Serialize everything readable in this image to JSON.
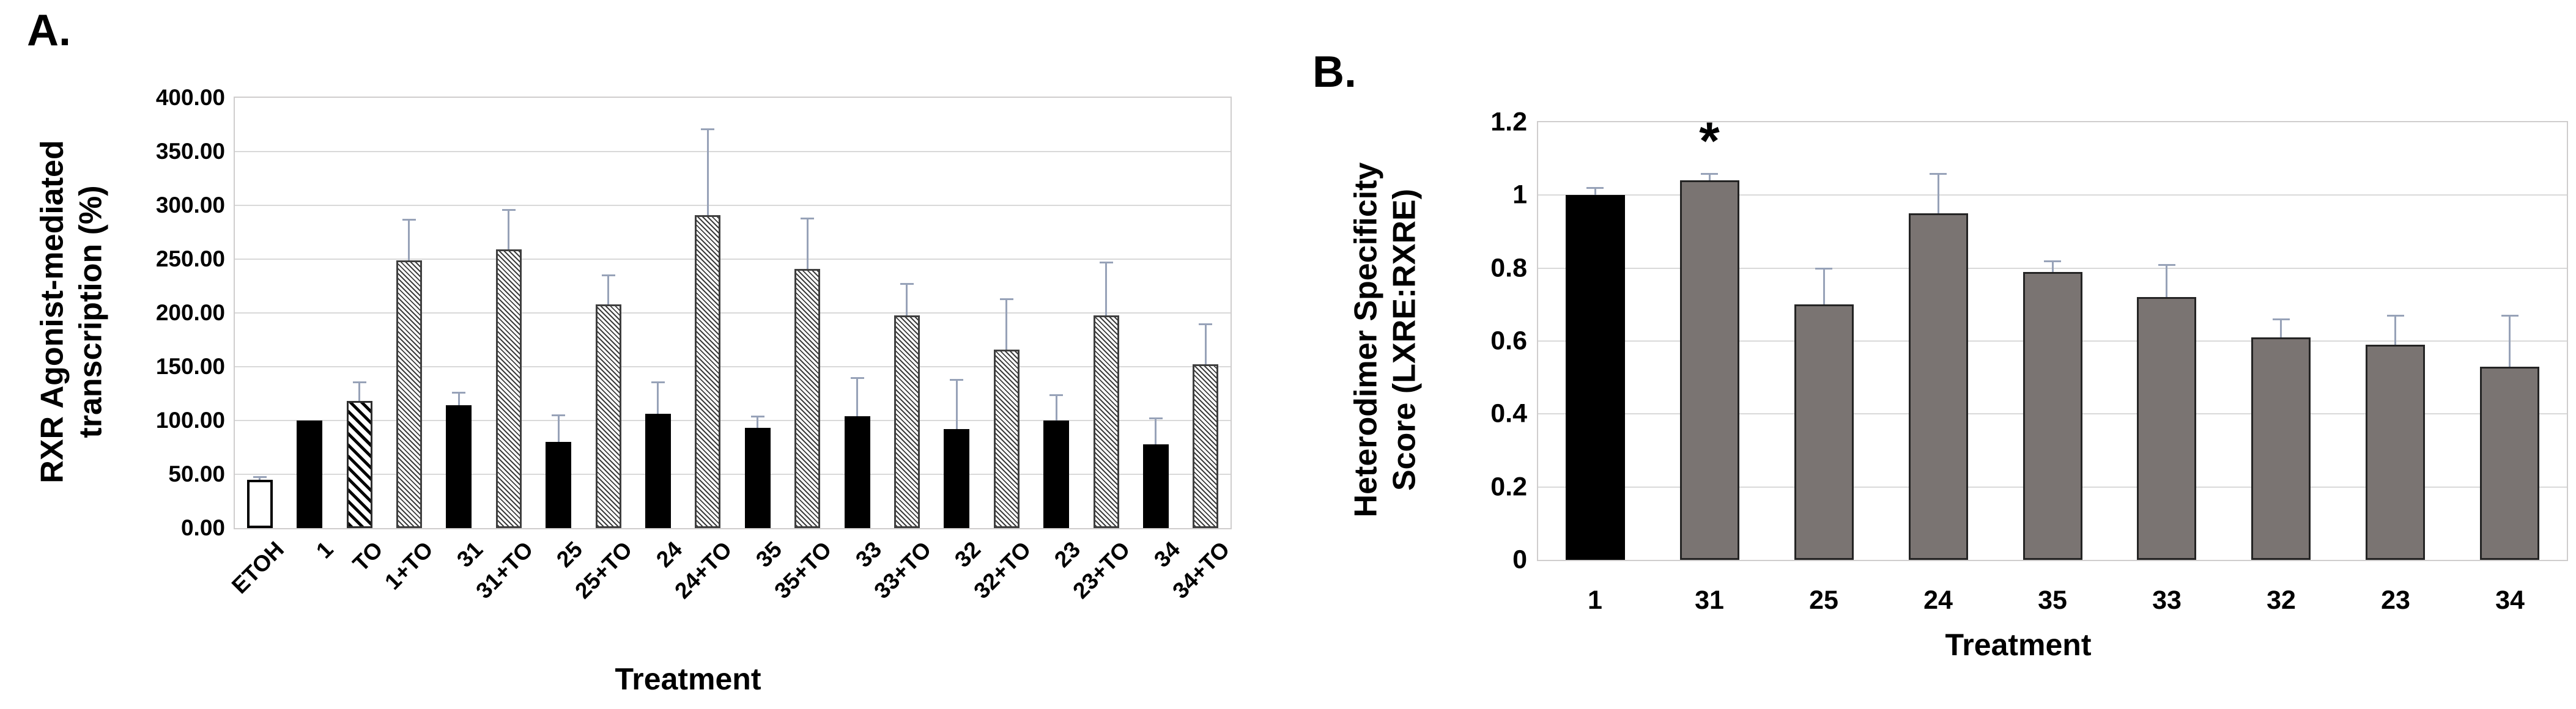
{
  "figure": {
    "background": "#ffffff"
  },
  "colors": {
    "error_bar": "#97a2b8",
    "gridline": "#d9d9d9",
    "plot_border": "#cfcdcd",
    "black_bar": "#000000",
    "gray_bar": "#7a7472",
    "text": "#000000"
  },
  "panels": {
    "a": {
      "tag": "A.",
      "ylabel_lines": [
        "RXR Agonist-mediated",
        "transcription (%)"
      ],
      "xlabel": "Treatment"
    },
    "b": {
      "tag": "B.",
      "ylabel_lines": [
        "Heterodimer Specificity",
        "Score (LXRE:RXRE)"
      ],
      "xlabel": "Treatment"
    }
  },
  "chart_data": [
    {
      "id": "a",
      "type": "bar",
      "title": "",
      "xlabel": "Treatment",
      "ylabel": "RXR Agonist-mediated transcription (%)",
      "ylim": [
        0,
        400
      ],
      "ytick_labels": [
        "400.00",
        "350.00",
        "300.00",
        "250.00",
        "200.00",
        "150.00",
        "100.00",
        "50.00",
        "0.00"
      ],
      "grid": "horizontal",
      "legend": "none",
      "categories": [
        "ETOH",
        "1",
        "TO",
        "1+TO",
        "31",
        "31+TO",
        "25",
        "25+TO",
        "24",
        "24+TO",
        "35",
        "35+TO",
        "33",
        "33+TO",
        "32",
        "32+TO",
        "23",
        "23+TO",
        "34",
        "34+TO"
      ],
      "values": [
        45,
        100,
        118,
        249,
        114,
        259,
        80,
        208,
        106,
        291,
        93,
        241,
        104,
        198,
        92,
        166,
        100,
        198,
        78,
        152
      ],
      "errors_plus": [
        3,
        0,
        18,
        38,
        12,
        37,
        25,
        27,
        30,
        80,
        11,
        47,
        36,
        29,
        46,
        47,
        24,
        49,
        24,
        38
      ],
      "bar_styles": [
        "white-outline",
        "solid-black",
        "bold-diagonal-stripes",
        "fine-diagonal-hatch",
        "solid-black",
        "fine-diagonal-hatch",
        "solid-black",
        "fine-diagonal-hatch",
        "solid-black",
        "fine-diagonal-hatch",
        "solid-black",
        "fine-diagonal-hatch",
        "solid-black",
        "fine-diagonal-hatch",
        "solid-black",
        "fine-diagonal-hatch",
        "solid-black",
        "fine-diagonal-hatch",
        "solid-black",
        "fine-diagonal-hatch"
      ],
      "annotations": []
    },
    {
      "id": "b",
      "type": "bar",
      "title": "",
      "xlabel": "Treatment",
      "ylabel": "Heterodimer Specificity Score (LXRE:RXRE)",
      "ylim": [
        0,
        1.2
      ],
      "ytick_labels": [
        "1.2",
        "1",
        "0.8",
        "0.6",
        "0.4",
        "0.2",
        "0"
      ],
      "grid": "horizontal",
      "legend": "none",
      "categories": [
        "1",
        "31",
        "25",
        "24",
        "35",
        "33",
        "32",
        "23",
        "34"
      ],
      "values": [
        1.0,
        1.04,
        0.7,
        0.95,
        0.79,
        0.72,
        0.61,
        0.59,
        0.53
      ],
      "errors_plus": [
        0.02,
        0.02,
        0.1,
        0.11,
        0.03,
        0.09,
        0.05,
        0.08,
        0.14
      ],
      "bar_styles": [
        "solid-black",
        "solid-gray",
        "solid-gray",
        "solid-gray",
        "solid-gray",
        "solid-gray",
        "solid-gray",
        "solid-gray",
        "solid-gray"
      ],
      "annotations": [
        {
          "category": "31",
          "text": "*"
        }
      ]
    }
  ]
}
